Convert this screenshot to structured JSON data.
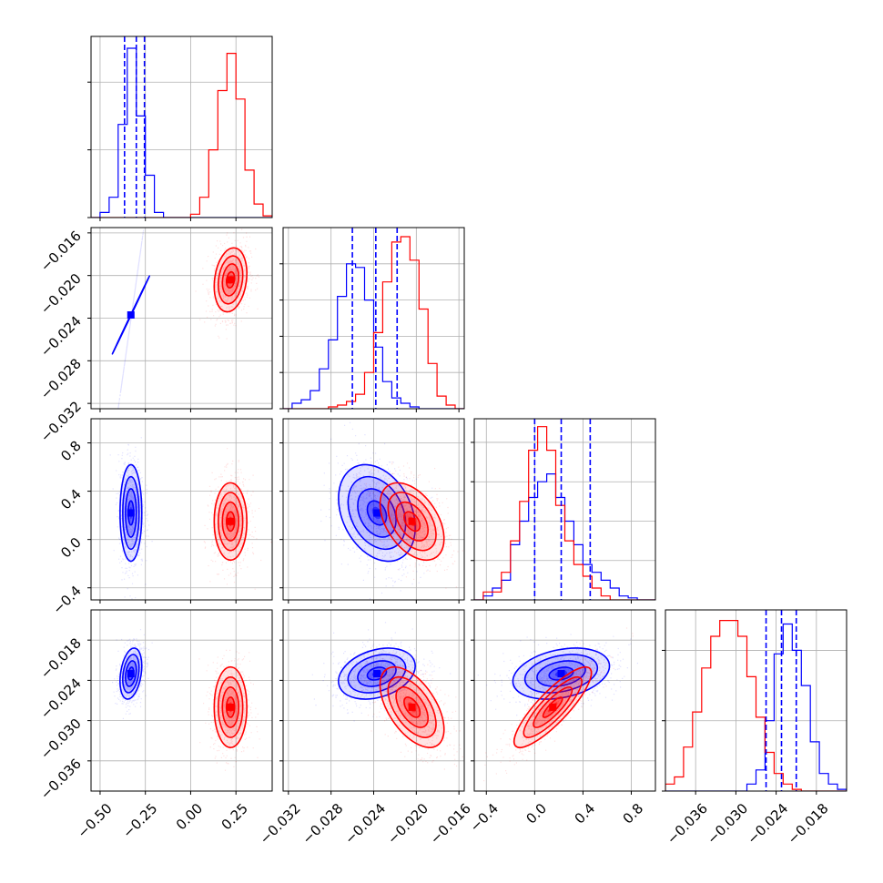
{
  "colors": {
    "series_a": "#0000ff",
    "series_b": "#ff0000",
    "grid": "#b0b0b0"
  },
  "chart_data": {
    "type": "corner",
    "params": [
      {
        "ticks": [
          -0.5,
          -0.25,
          0.0,
          0.25
        ],
        "tick_labels": [
          "−0.50",
          "−0.25",
          "0.00",
          "0.25"
        ]
      },
      {
        "ticks": [
          -0.032,
          -0.028,
          -0.024,
          -0.02,
          -0.016
        ],
        "tick_labels": [
          "−0.032",
          "−0.028",
          "−0.024",
          "−0.020",
          "−0.016"
        ]
      },
      {
        "ticks": [
          -0.4,
          0.0,
          0.4,
          0.8
        ],
        "tick_labels": [
          "−0.4",
          "0.0",
          "0.4",
          "0.8"
        ]
      },
      {
        "ticks": [
          -0.036,
          -0.03,
          -0.024,
          -0.018
        ],
        "tick_labels": [
          "−0.036",
          "−0.030",
          "−0.024",
          "−0.018"
        ]
      }
    ],
    "ranges": [
      [
        -0.55,
        0.45
      ],
      [
        -0.0325,
        -0.0155
      ],
      [
        -0.5,
        1.0
      ],
      [
        -0.0405,
        -0.0135
      ]
    ],
    "series": [
      {
        "color": "#0000ff",
        "mean": [
          -0.33,
          -0.0237,
          0.22,
          -0.023
        ],
        "std": [
          0.03,
          0.0018,
          0.2,
          0.0019
        ],
        "corr": [
          [
            0,
            1,
            2,
            0.6
          ],
          [
            0,
            3,
            0.3
          ],
          [
            1,
            2,
            -0.3
          ],
          [
            1,
            3,
            0.3
          ],
          [
            2,
            3,
            0.3
          ]
        ],
        "quantiles": [
          [
            -0.365,
            -0.3,
            -0.255
          ],
          [
            -0.026,
            -0.0238,
            -0.0218
          ],
          [
            0.0,
            0.22,
            0.46
          ],
          [
            -0.0255,
            -0.0232,
            -0.021
          ]
        ]
      },
      {
        "color": "#ff0000",
        "mean": [
          0.22,
          -0.0204,
          0.15,
          -0.028
        ],
        "std": [
          0.045,
          0.0015,
          0.16,
          0.003
        ],
        "corr": [
          [
            0,
            1,
            0.2
          ],
          [
            0,
            2,
            0.0
          ],
          [
            0,
            3,
            0.0
          ],
          [
            1,
            2,
            -0.45
          ],
          [
            1,
            3,
            -0.55
          ],
          [
            2,
            3,
            0.85
          ]
        ]
      }
    ],
    "histograms": [
      {
        "bins": [
          -0.55,
          0.45,
          20
        ],
        "blue": [
          0,
          3,
          12,
          55,
          100,
          60,
          25,
          3,
          0,
          0,
          0,
          0,
          0,
          0,
          0,
          0,
          0,
          0,
          0,
          0
        ],
        "red": [
          0,
          0,
          0,
          0,
          0,
          0,
          0,
          0,
          0,
          0,
          0,
          2,
          12,
          40,
          75,
          97,
          70,
          28,
          8,
          1
        ]
      },
      {
        "bins": [
          -0.0325,
          -0.0155,
          20
        ],
        "blue": [
          0,
          3,
          5,
          10,
          22,
          38,
          62,
          80,
          78,
          60,
          34,
          15,
          6,
          3,
          1,
          0,
          0,
          0,
          0,
          0
        ],
        "red": [
          0,
          0,
          0,
          0,
          0,
          1,
          2,
          4,
          8,
          20,
          42,
          70,
          92,
          95,
          82,
          55,
          25,
          7,
          2,
          0
        ]
      },
      {
        "bins": [
          -0.5,
          1.0,
          20
        ],
        "blue": [
          0,
          2,
          6,
          10,
          28,
          40,
          52,
          60,
          64,
          52,
          40,
          28,
          18,
          14,
          10,
          6,
          2,
          1,
          0,
          0
        ],
        "red": [
          0,
          4,
          4,
          14,
          30,
          50,
          76,
          88,
          76,
          48,
          30,
          18,
          12,
          6,
          2,
          0,
          0,
          0,
          0,
          0
        ]
      },
      {
        "bins": [
          -0.0405,
          -0.0135,
          20
        ],
        "blue": [
          0,
          0,
          0,
          0,
          0,
          0,
          0,
          0,
          0,
          4,
          12,
          40,
          78,
          95,
          80,
          60,
          28,
          10,
          4,
          1
        ],
        "red": [
          4,
          8,
          25,
          45,
          70,
          88,
          97,
          97,
          88,
          65,
          42,
          22,
          10,
          4,
          1,
          0,
          0,
          0,
          0,
          0
        ]
      }
    ],
    "diag_ymax": [
      107,
      100,
      92,
      103
    ],
    "diag_yticks": [
      {
        "ticks": [
          0,
          40,
          80
        ],
        "labels": [
          "",
          "",
          ""
        ]
      },
      {
        "ticks": [
          0,
          20,
          40,
          60,
          80
        ],
        "labels": [
          "",
          "",
          "",
          "",
          ""
        ]
      },
      {
        "ticks": [
          0,
          20,
          40,
          60,
          80
        ],
        "labels": [
          "",
          "",
          "",
          "",
          ""
        ]
      },
      {
        "ticks": [
          0,
          40,
          80
        ],
        "labels": [
          "",
          "",
          ""
        ]
      }
    ]
  }
}
